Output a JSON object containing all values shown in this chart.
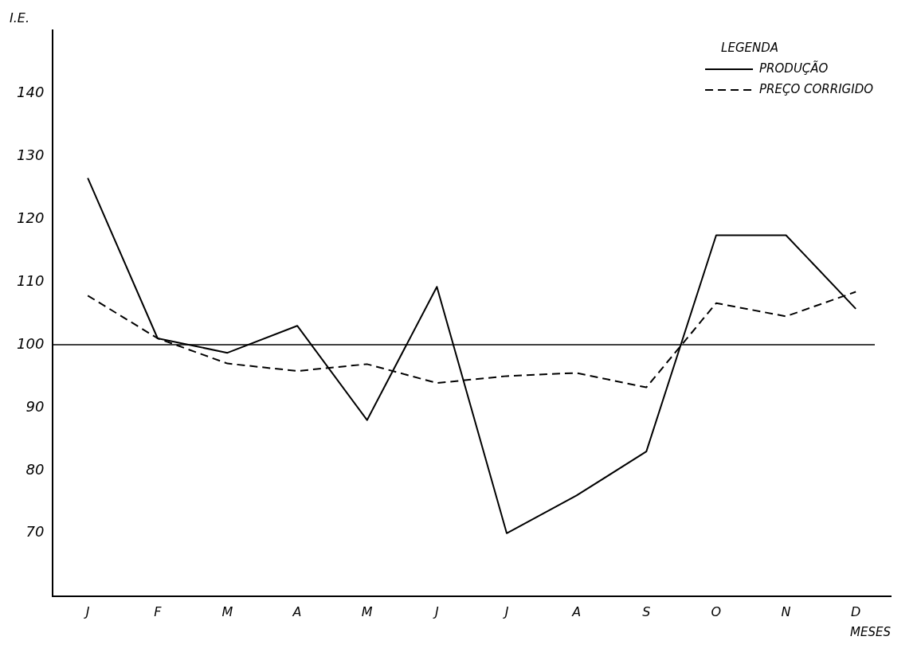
{
  "chart_data": {
    "type": "line",
    "xlabel": "MESES",
    "ylabel": "I.E.",
    "legend_title": "LEGENDA",
    "categories": [
      "J",
      "F",
      "M",
      "A",
      "M",
      "J",
      "J",
      "A",
      "S",
      "O",
      "N",
      "D"
    ],
    "series": [
      {
        "name": "PRODUÇÃO",
        "color": "#000000",
        "line_style": "solid",
        "values": [
          126.5,
          101,
          98.7,
          103,
          88,
          109.2,
          70,
          76,
          83,
          117.4,
          117.4,
          105.7
        ]
      },
      {
        "name": "PREÇO CORRIGIDO",
        "color": "#000000",
        "line_style": "dashed",
        "values": [
          107.8,
          101,
          97,
          95.8,
          96.9,
          93.9,
          95,
          95.5,
          93.2,
          106.6,
          104.5,
          108.4
        ]
      }
    ],
    "ylim": [
      60,
      150
    ],
    "yticks": [
      70,
      80,
      90,
      100,
      110,
      120,
      130,
      140
    ],
    "ref_lines": [
      {
        "axis": "y",
        "value": 100,
        "color": "#000000"
      }
    ],
    "grid": false,
    "legend": "top right",
    "marker": "none"
  }
}
